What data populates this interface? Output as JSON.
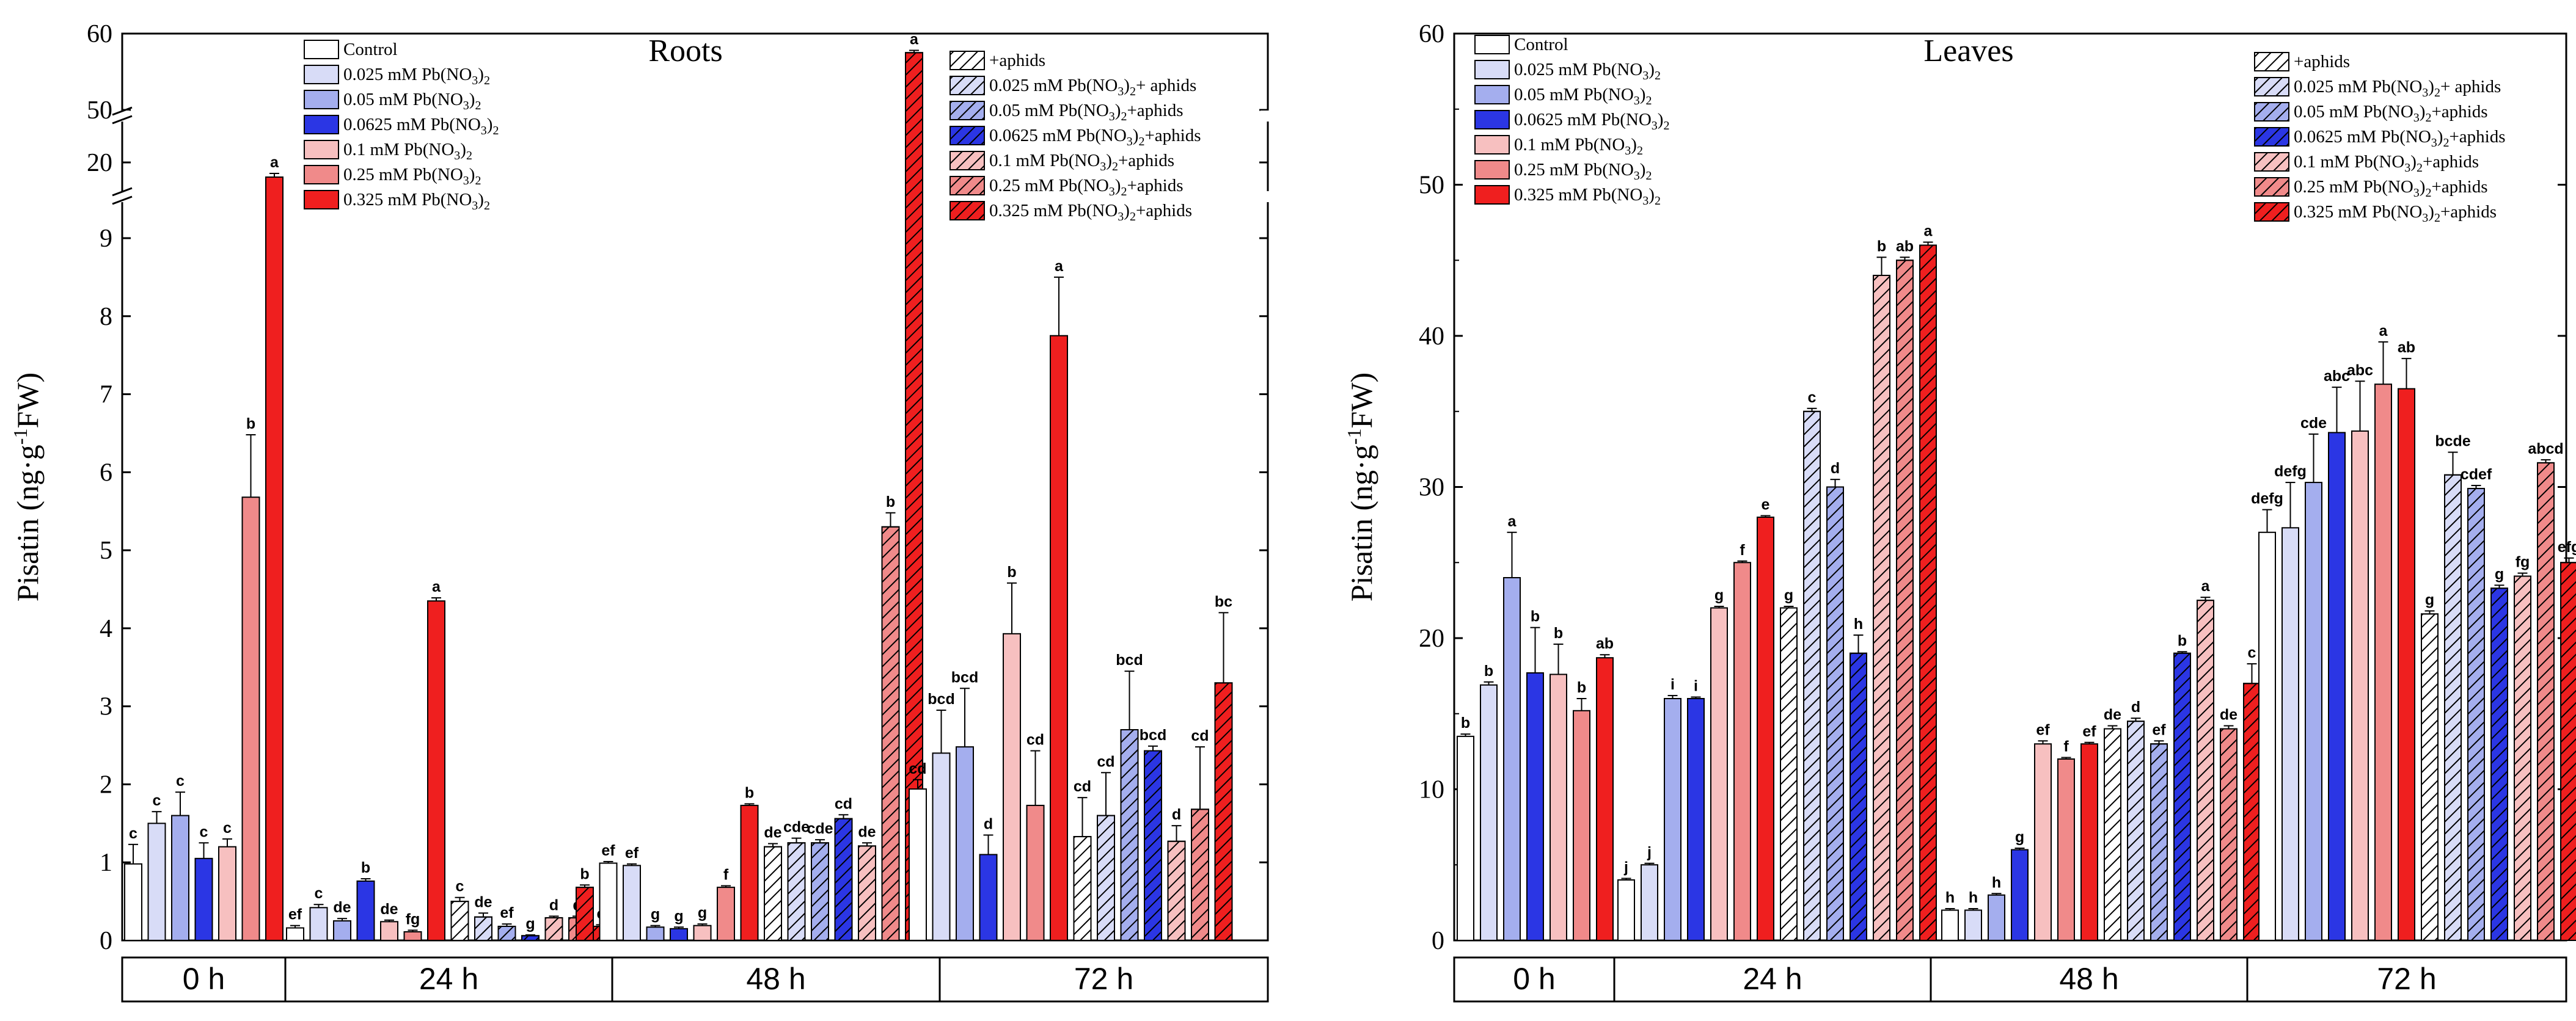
{
  "figure": "Pisatin content in pea roots and leaves",
  "colors": {
    "control": "#ffffff",
    "pb_0025": "#d8dcf7",
    "pb_005": "#a4aeee",
    "pb_00625": "#2b36e4",
    "pb_01": "#f7c0c0",
    "pb_025": "#f08a8a",
    "pb_0325": "#ef1f1f"
  },
  "chart_data": [
    {
      "type": "bar",
      "title": "Roots",
      "ylabel": "Pisatin (ng·g⁻¹FW)",
      "axis_break": {
        "segments": [
          [
            0,
            10
          ],
          [
            18.5,
            21
          ],
          [
            48,
            60
          ]
        ]
      },
      "yticks": [
        0,
        1,
        2,
        3,
        4,
        5,
        6,
        7,
        8,
        9,
        20,
        50,
        60
      ],
      "time_points": [
        "0 h",
        "24 h",
        "48 h",
        "72 h"
      ],
      "legend_left": [
        "Control",
        "0.025 mM Pb(NO3)2",
        "0.05  mM Pb(NO3)2",
        "0.0625 mM Pb(NO3)2",
        "0.1  mM Pb(NO3)2",
        "0.25  mM Pb(NO3)2",
        "0.325  mM Pb(NO3)2"
      ],
      "legend_right": [
        "+aphids",
        "0.025 mM Pb(NO3)2+ aphids",
        "0.05 mM Pb(NO3)2+aphids",
        "0.0625 mM Pb(NO3)2+aphids",
        "0.1 mM Pb(NO3)2+aphids",
        "0.25 mM Pb(NO3)2+aphids",
        "0.325 mM Pb(NO3)2+aphids"
      ],
      "groups": [
        {
          "time": "0 h",
          "bars": [
            {
              "series": 0,
              "aphids": false,
              "value": 0.98,
              "err": 0.25,
              "label": "c"
            },
            {
              "series": 1,
              "aphids": false,
              "value": 1.5,
              "err": 0.15,
              "label": "c"
            },
            {
              "series": 2,
              "aphids": false,
              "value": 1.6,
              "err": 0.3,
              "label": "c"
            },
            {
              "series": 3,
              "aphids": false,
              "value": 1.05,
              "err": 0.2,
              "label": "c"
            },
            {
              "series": 4,
              "aphids": false,
              "value": 1.2,
              "err": 0.1,
              "label": "c"
            },
            {
              "series": 5,
              "aphids": false,
              "value": 5.68,
              "err": 0.8,
              "label": "b"
            },
            {
              "series": 6,
              "aphids": false,
              "value": 19.0,
              "err": 0.25,
              "label": "a"
            }
          ]
        },
        {
          "time": "24 h",
          "bars": [
            {
              "series": 0,
              "aphids": false,
              "value": 0.16,
              "err": 0.03,
              "label": "ef"
            },
            {
              "series": 1,
              "aphids": false,
              "value": 0.42,
              "err": 0.04,
              "label": "c"
            },
            {
              "series": 2,
              "aphids": false,
              "value": 0.25,
              "err": 0.03,
              "label": "de"
            },
            {
              "series": 3,
              "aphids": false,
              "value": 0.76,
              "err": 0.03,
              "label": "b"
            },
            {
              "series": 4,
              "aphids": false,
              "value": 0.24,
              "err": 0.02,
              "label": "de"
            },
            {
              "series": 5,
              "aphids": false,
              "value": 0.11,
              "err": 0.02,
              "label": "fg"
            },
            {
              "series": 6,
              "aphids": false,
              "value": 4.35,
              "err": 0.04,
              "label": "a"
            },
            {
              "series": 0,
              "aphids": true,
              "value": 0.5,
              "err": 0.05,
              "label": "c"
            },
            {
              "series": 1,
              "aphids": true,
              "value": 0.3,
              "err": 0.05,
              "label": "de"
            },
            {
              "series": 2,
              "aphids": true,
              "value": 0.18,
              "err": 0.03,
              "label": "ef"
            },
            {
              "series": 3,
              "aphids": true,
              "value": 0.06,
              "err": 0.01,
              "label": "g"
            },
            {
              "series": 4,
              "aphids": true,
              "value": 0.29,
              "err": 0.02,
              "label": "d"
            },
            {
              "series": 5,
              "aphids": true,
              "value": 0.29,
              "err": 0.02,
              "label": "d"
            },
            {
              "series": 6,
              "aphids": true,
              "value": 0.18,
              "err": 0.02,
              "label": "e"
            }
          ]
        },
        {
          "time": "48 h",
          "bars": [
            {
              "series": 6,
              "aphids": true,
              "value": 0.68,
              "err": 0.03,
              "label": "b"
            },
            {
              "series": 0,
              "aphids": false,
              "value": 0.99,
              "err": 0.02,
              "label": "ef"
            },
            {
              "series": 1,
              "aphids": false,
              "value": 0.96,
              "err": 0.02,
              "label": "ef"
            },
            {
              "series": 2,
              "aphids": false,
              "value": 0.17,
              "err": 0.02,
              "label": "g"
            },
            {
              "series": 3,
              "aphids": false,
              "value": 0.15,
              "err": 0.02,
              "label": "g"
            },
            {
              "series": 4,
              "aphids": false,
              "value": 0.19,
              "err": 0.02,
              "label": "g"
            },
            {
              "series": 5,
              "aphids": false,
              "value": 0.68,
              "err": 0.02,
              "label": "f"
            },
            {
              "series": 6,
              "aphids": false,
              "value": 1.73,
              "err": 0.02,
              "label": "b"
            },
            {
              "series": 0,
              "aphids": true,
              "value": 1.2,
              "err": 0.04,
              "label": "de"
            },
            {
              "series": 1,
              "aphids": true,
              "value": 1.25,
              "err": 0.06,
              "label": "cde"
            },
            {
              "series": 2,
              "aphids": true,
              "value": 1.25,
              "err": 0.04,
              "label": "cde"
            },
            {
              "series": 3,
              "aphids": true,
              "value": 1.56,
              "err": 0.05,
              "label": "cd"
            },
            {
              "series": 4,
              "aphids": true,
              "value": 1.21,
              "err": 0.04,
              "label": "de"
            },
            {
              "series": 5,
              "aphids": true,
              "value": 5.3,
              "err": 0.18,
              "label": "b"
            },
            {
              "series": 6,
              "aphids": true,
              "value": 57.5,
              "err": 0.3,
              "label": "a"
            }
          ]
        },
        {
          "time": "72 h",
          "bars": [
            {
              "series": 0,
              "aphids": false,
              "value": 1.94,
              "err": 0.12,
              "label": "cd"
            },
            {
              "series": 1,
              "aphids": false,
              "value": 2.4,
              "err": 0.55,
              "label": "bcd"
            },
            {
              "series": 2,
              "aphids": false,
              "value": 2.48,
              "err": 0.75,
              "label": "bcd"
            },
            {
              "series": 3,
              "aphids": false,
              "value": 1.1,
              "err": 0.25,
              "label": "d"
            },
            {
              "series": 4,
              "aphids": false,
              "value": 3.93,
              "err": 0.65,
              "label": "b"
            },
            {
              "series": 5,
              "aphids": false,
              "value": 1.73,
              "err": 0.7,
              "label": "cd"
            },
            {
              "series": 6,
              "aphids": false,
              "value": 7.75,
              "err": 0.75,
              "label": "a"
            },
            {
              "series": 0,
              "aphids": true,
              "value": 1.33,
              "err": 0.5,
              "label": "cd"
            },
            {
              "series": 1,
              "aphids": true,
              "value": 1.6,
              "err": 0.55,
              "label": "cd"
            },
            {
              "series": 2,
              "aphids": true,
              "value": 2.7,
              "err": 0.75,
              "label": "bcd"
            },
            {
              "series": 3,
              "aphids": true,
              "value": 2.43,
              "err": 0.06,
              "label": "bcd"
            },
            {
              "series": 4,
              "aphids": true,
              "value": 1.27,
              "err": 0.2,
              "label": "d"
            },
            {
              "series": 5,
              "aphids": true,
              "value": 1.68,
              "err": 0.8,
              "label": "cd"
            },
            {
              "series": 6,
              "aphids": true,
              "value": 3.3,
              "err": 0.9,
              "label": "bc"
            }
          ]
        }
      ]
    },
    {
      "type": "bar",
      "title": "Leaves",
      "ylabel": "Pisatin (ng·g⁻¹FW)",
      "ylim": [
        0,
        60
      ],
      "yticks": [
        0,
        10,
        20,
        30,
        40,
        50,
        60
      ],
      "time_points": [
        "0 h",
        "24 h",
        "48 h",
        "72 h"
      ],
      "legend_left": [
        "Control",
        "0.025 mM Pb(NO3)2",
        "0.05  mM Pb(NO3)2",
        "0.0625 mM Pb(NO3)2",
        "0.1  mM Pb(NO3)2",
        "0.25  mM Pb(NO3)2",
        "0.325  mM Pb(NO3)2"
      ],
      "legend_right": [
        "+aphids",
        "0.025 mM Pb(NO3)2+ aphids",
        "0.05 mM Pb(NO3)2+aphids",
        "0.0625 mM Pb(NO3)2+aphids",
        "0.1 mM Pb(NO3)2+aphids",
        "0.25 mM Pb(NO3)2+aphids",
        "0.325 mM Pb(NO3)2+aphids"
      ],
      "groups": [
        {
          "time": "0 h",
          "bars": [
            {
              "series": 0,
              "aphids": false,
              "value": 13.5,
              "err": 0.15,
              "label": "b"
            },
            {
              "series": 1,
              "aphids": false,
              "value": 16.9,
              "err": 0.2,
              "label": "b"
            },
            {
              "series": 2,
              "aphids": false,
              "value": 24.0,
              "err": 3.0,
              "label": "a"
            },
            {
              "series": 3,
              "aphids": false,
              "value": 17.7,
              "err": 3.0,
              "label": "b"
            },
            {
              "series": 4,
              "aphids": false,
              "value": 17.6,
              "err": 2.0,
              "label": "b"
            },
            {
              "series": 5,
              "aphids": false,
              "value": 15.2,
              "err": 0.8,
              "label": "b"
            },
            {
              "series": 6,
              "aphids": false,
              "value": 18.7,
              "err": 0.2,
              "label": "ab"
            }
          ]
        },
        {
          "time": "24 h",
          "bars": [
            {
              "series": 0,
              "aphids": false,
              "value": 4.0,
              "err": 0.1,
              "label": "j"
            },
            {
              "series": 1,
              "aphids": false,
              "value": 5.0,
              "err": 0.1,
              "label": "j"
            },
            {
              "series": 2,
              "aphids": false,
              "value": 16.0,
              "err": 0.2,
              "label": "i"
            },
            {
              "series": 3,
              "aphids": false,
              "value": 16.0,
              "err": 0.1,
              "label": "i"
            },
            {
              "series": 4,
              "aphids": false,
              "value": 22.0,
              "err": 0.1,
              "label": "g"
            },
            {
              "series": 5,
              "aphids": false,
              "value": 25.0,
              "err": 0.1,
              "label": "f"
            },
            {
              "series": 6,
              "aphids": false,
              "value": 28.0,
              "err": 0.1,
              "label": "e"
            },
            {
              "series": 0,
              "aphids": true,
              "value": 22.0,
              "err": 0.1,
              "label": "g"
            },
            {
              "series": 1,
              "aphids": true,
              "value": 35.0,
              "err": 0.2,
              "label": "c"
            },
            {
              "series": 2,
              "aphids": true,
              "value": 30.0,
              "err": 0.5,
              "label": "d"
            },
            {
              "series": 3,
              "aphids": true,
              "value": 19.0,
              "err": 1.2,
              "label": "h"
            },
            {
              "series": 4,
              "aphids": true,
              "value": 44.0,
              "err": 1.2,
              "label": "b"
            },
            {
              "series": 5,
              "aphids": true,
              "value": 45.0,
              "err": 0.2,
              "label": "ab"
            },
            {
              "series": 6,
              "aphids": true,
              "value": 46.0,
              "err": 0.2,
              "label": "a"
            }
          ]
        },
        {
          "time": "48 h",
          "bars": [
            {
              "series": 0,
              "aphids": false,
              "value": 2.0,
              "err": 0.1,
              "label": "h"
            },
            {
              "series": 1,
              "aphids": false,
              "value": 2.0,
              "err": 0.1,
              "label": "h"
            },
            {
              "series": 2,
              "aphids": false,
              "value": 3.0,
              "err": 0.1,
              "label": "h"
            },
            {
              "series": 3,
              "aphids": false,
              "value": 6.0,
              "err": 0.1,
              "label": "g"
            },
            {
              "series": 4,
              "aphids": false,
              "value": 13.0,
              "err": 0.2,
              "label": "ef"
            },
            {
              "series": 5,
              "aphids": false,
              "value": 12.0,
              "err": 0.1,
              "label": "f"
            },
            {
              "series": 6,
              "aphids": false,
              "value": 13.0,
              "err": 0.1,
              "label": "ef"
            },
            {
              "series": 0,
              "aphids": true,
              "value": 14.0,
              "err": 0.2,
              "label": "de"
            },
            {
              "series": 1,
              "aphids": true,
              "value": 14.5,
              "err": 0.2,
              "label": "d"
            },
            {
              "series": 2,
              "aphids": true,
              "value": 13.0,
              "err": 0.2,
              "label": "ef"
            },
            {
              "series": 3,
              "aphids": true,
              "value": 19.0,
              "err": 0.1,
              "label": "b"
            },
            {
              "series": 4,
              "aphids": true,
              "value": 22.5,
              "err": 0.2,
              "label": "a"
            },
            {
              "series": 5,
              "aphids": true,
              "value": 14.0,
              "err": 0.2,
              "label": "de"
            },
            {
              "series": 6,
              "aphids": true,
              "value": 17.0,
              "err": 1.3,
              "label": "c"
            }
          ]
        },
        {
          "time": "72 h",
          "bars": [
            {
              "series": 0,
              "aphids": false,
              "value": 27.0,
              "err": 1.5,
              "label": "defg"
            },
            {
              "series": 1,
              "aphids": false,
              "value": 27.3,
              "err": 3.0,
              "label": "defg"
            },
            {
              "series": 2,
              "aphids": false,
              "value": 30.3,
              "err": 3.2,
              "label": "cde"
            },
            {
              "series": 3,
              "aphids": false,
              "value": 33.6,
              "err": 3.0,
              "label": "abc"
            },
            {
              "series": 4,
              "aphids": false,
              "value": 33.7,
              "err": 3.3,
              "label": "abc"
            },
            {
              "series": 5,
              "aphids": false,
              "value": 36.8,
              "err": 2.8,
              "label": "a"
            },
            {
              "series": 6,
              "aphids": false,
              "value": 36.5,
              "err": 2.0,
              "label": "ab"
            },
            {
              "series": 0,
              "aphids": true,
              "value": 21.6,
              "err": 0.2,
              "label": "g"
            },
            {
              "series": 1,
              "aphids": true,
              "value": 30.8,
              "err": 1.5,
              "label": "bcde"
            },
            {
              "series": 2,
              "aphids": true,
              "value": 29.9,
              "err": 0.2,
              "label": "cdef"
            },
            {
              "series": 3,
              "aphids": true,
              "value": 23.3,
              "err": 0.2,
              "label": "g"
            },
            {
              "series": 4,
              "aphids": true,
              "value": 24.1,
              "err": 0.2,
              "label": "fg"
            },
            {
              "series": 5,
              "aphids": true,
              "value": 31.6,
              "err": 0.2,
              "label": "abcd"
            },
            {
              "series": 6,
              "aphids": true,
              "value": 25.0,
              "err": 0.3,
              "label": "efg"
            }
          ]
        }
      ]
    }
  ]
}
